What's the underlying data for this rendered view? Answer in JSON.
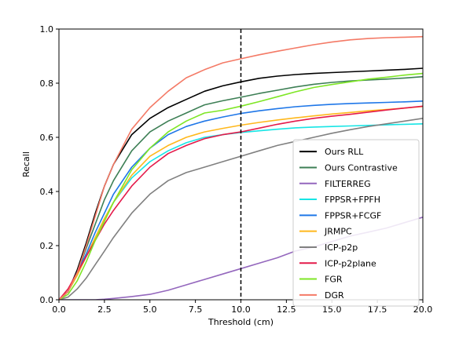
{
  "chart_data": {
    "type": "line",
    "title": "",
    "xlabel": "Threshold (cm)",
    "ylabel": "Recall",
    "xlim": [
      0,
      20
    ],
    "ylim": [
      0,
      1
    ],
    "xticks": [
      0.0,
      2.5,
      5.0,
      7.5,
      10.0,
      12.5,
      15.0,
      17.5,
      20.0
    ],
    "xtick_labels": [
      "0.0",
      "2.5",
      "5.0",
      "7.5",
      "10.0",
      "12.5",
      "15.0",
      "17.5",
      "20.0"
    ],
    "yticks": [
      0.0,
      0.2,
      0.4,
      0.6,
      0.8,
      1.0
    ],
    "ytick_labels": [
      "0.0",
      "0.2",
      "0.4",
      "0.6",
      "0.8",
      "1.0"
    ],
    "grid": false,
    "legend_position": "lower right",
    "vline": {
      "x": 10,
      "style": "dashed",
      "color": "#000000"
    },
    "x": [
      0,
      0.5,
      1,
      1.5,
      2,
      2.5,
      3,
      4,
      5,
      6,
      7,
      8,
      9,
      10,
      11,
      12,
      13,
      14,
      15,
      16,
      17,
      18,
      19,
      20
    ],
    "series": [
      {
        "name": "Ours RLL",
        "color": "#000000",
        "values": [
          0,
          0.03,
          0.11,
          0.21,
          0.32,
          0.42,
          0.5,
          0.61,
          0.67,
          0.71,
          0.74,
          0.77,
          0.79,
          0.805,
          0.818,
          0.826,
          0.832,
          0.836,
          0.839,
          0.842,
          0.845,
          0.848,
          0.851,
          0.855
        ]
      },
      {
        "name": "Ours Contrastive",
        "color": "#3d7f55",
        "values": [
          0,
          0.03,
          0.1,
          0.19,
          0.28,
          0.37,
          0.44,
          0.55,
          0.62,
          0.66,
          0.69,
          0.72,
          0.735,
          0.748,
          0.762,
          0.774,
          0.786,
          0.796,
          0.803,
          0.808,
          0.812,
          0.815,
          0.819,
          0.824
        ]
      },
      {
        "name": "FILTERREG",
        "color": "#9467bd",
        "values": [
          0,
          0,
          0,
          0,
          0,
          0.002,
          0.005,
          0.012,
          0.02,
          0.035,
          0.055,
          0.075,
          0.095,
          0.115,
          0.135,
          0.155,
          0.18,
          0.195,
          0.215,
          0.235,
          0.25,
          0.265,
          0.285,
          0.305
        ]
      },
      {
        "name": "FPPSR+FPFH",
        "color": "#17e5e5",
        "values": [
          0,
          0.03,
          0.09,
          0.16,
          0.23,
          0.3,
          0.36,
          0.45,
          0.51,
          0.55,
          0.58,
          0.6,
          0.61,
          0.618,
          0.624,
          0.63,
          0.635,
          0.638,
          0.64,
          0.642,
          0.644,
          0.646,
          0.648,
          0.65
        ]
      },
      {
        "name": "FPPSR+FCGF",
        "color": "#1f77e8",
        "values": [
          0,
          0.03,
          0.1,
          0.17,
          0.25,
          0.32,
          0.39,
          0.49,
          0.56,
          0.61,
          0.64,
          0.66,
          0.675,
          0.688,
          0.698,
          0.706,
          0.713,
          0.718,
          0.722,
          0.725,
          0.727,
          0.729,
          0.731,
          0.734
        ]
      },
      {
        "name": "JRMPC",
        "color": "#ffb81c",
        "values": [
          0,
          0.03,
          0.09,
          0.16,
          0.23,
          0.3,
          0.36,
          0.46,
          0.53,
          0.57,
          0.6,
          0.62,
          0.633,
          0.645,
          0.655,
          0.664,
          0.672,
          0.679,
          0.686,
          0.692,
          0.698,
          0.703,
          0.708,
          0.714
        ]
      },
      {
        "name": "ICP-p2p",
        "color": "#808080",
        "values": [
          0,
          0.01,
          0.04,
          0.08,
          0.13,
          0.18,
          0.23,
          0.32,
          0.39,
          0.44,
          0.47,
          0.49,
          0.51,
          0.53,
          0.55,
          0.57,
          0.585,
          0.6,
          0.615,
          0.628,
          0.64,
          0.65,
          0.66,
          0.67
        ]
      },
      {
        "name": "ICP-p2plane",
        "color": "#e41a4a",
        "values": [
          0,
          0.04,
          0.1,
          0.16,
          0.22,
          0.28,
          0.33,
          0.42,
          0.49,
          0.54,
          0.57,
          0.595,
          0.61,
          0.62,
          0.634,
          0.648,
          0.66,
          0.67,
          0.678,
          0.685,
          0.693,
          0.701,
          0.708,
          0.715
        ]
      },
      {
        "name": "FGR",
        "color": "#7ee625",
        "values": [
          0,
          0.02,
          0.07,
          0.14,
          0.22,
          0.29,
          0.36,
          0.48,
          0.56,
          0.62,
          0.66,
          0.69,
          0.7,
          0.715,
          0.732,
          0.75,
          0.768,
          0.784,
          0.795,
          0.805,
          0.815,
          0.822,
          0.83,
          0.836
        ]
      },
      {
        "name": "DGR",
        "color": "#f47a66",
        "values": [
          0,
          0.03,
          0.1,
          0.2,
          0.31,
          0.42,
          0.5,
          0.63,
          0.71,
          0.77,
          0.82,
          0.85,
          0.875,
          0.89,
          0.905,
          0.918,
          0.93,
          0.942,
          0.952,
          0.96,
          0.965,
          0.968,
          0.97,
          0.972
        ]
      }
    ]
  }
}
